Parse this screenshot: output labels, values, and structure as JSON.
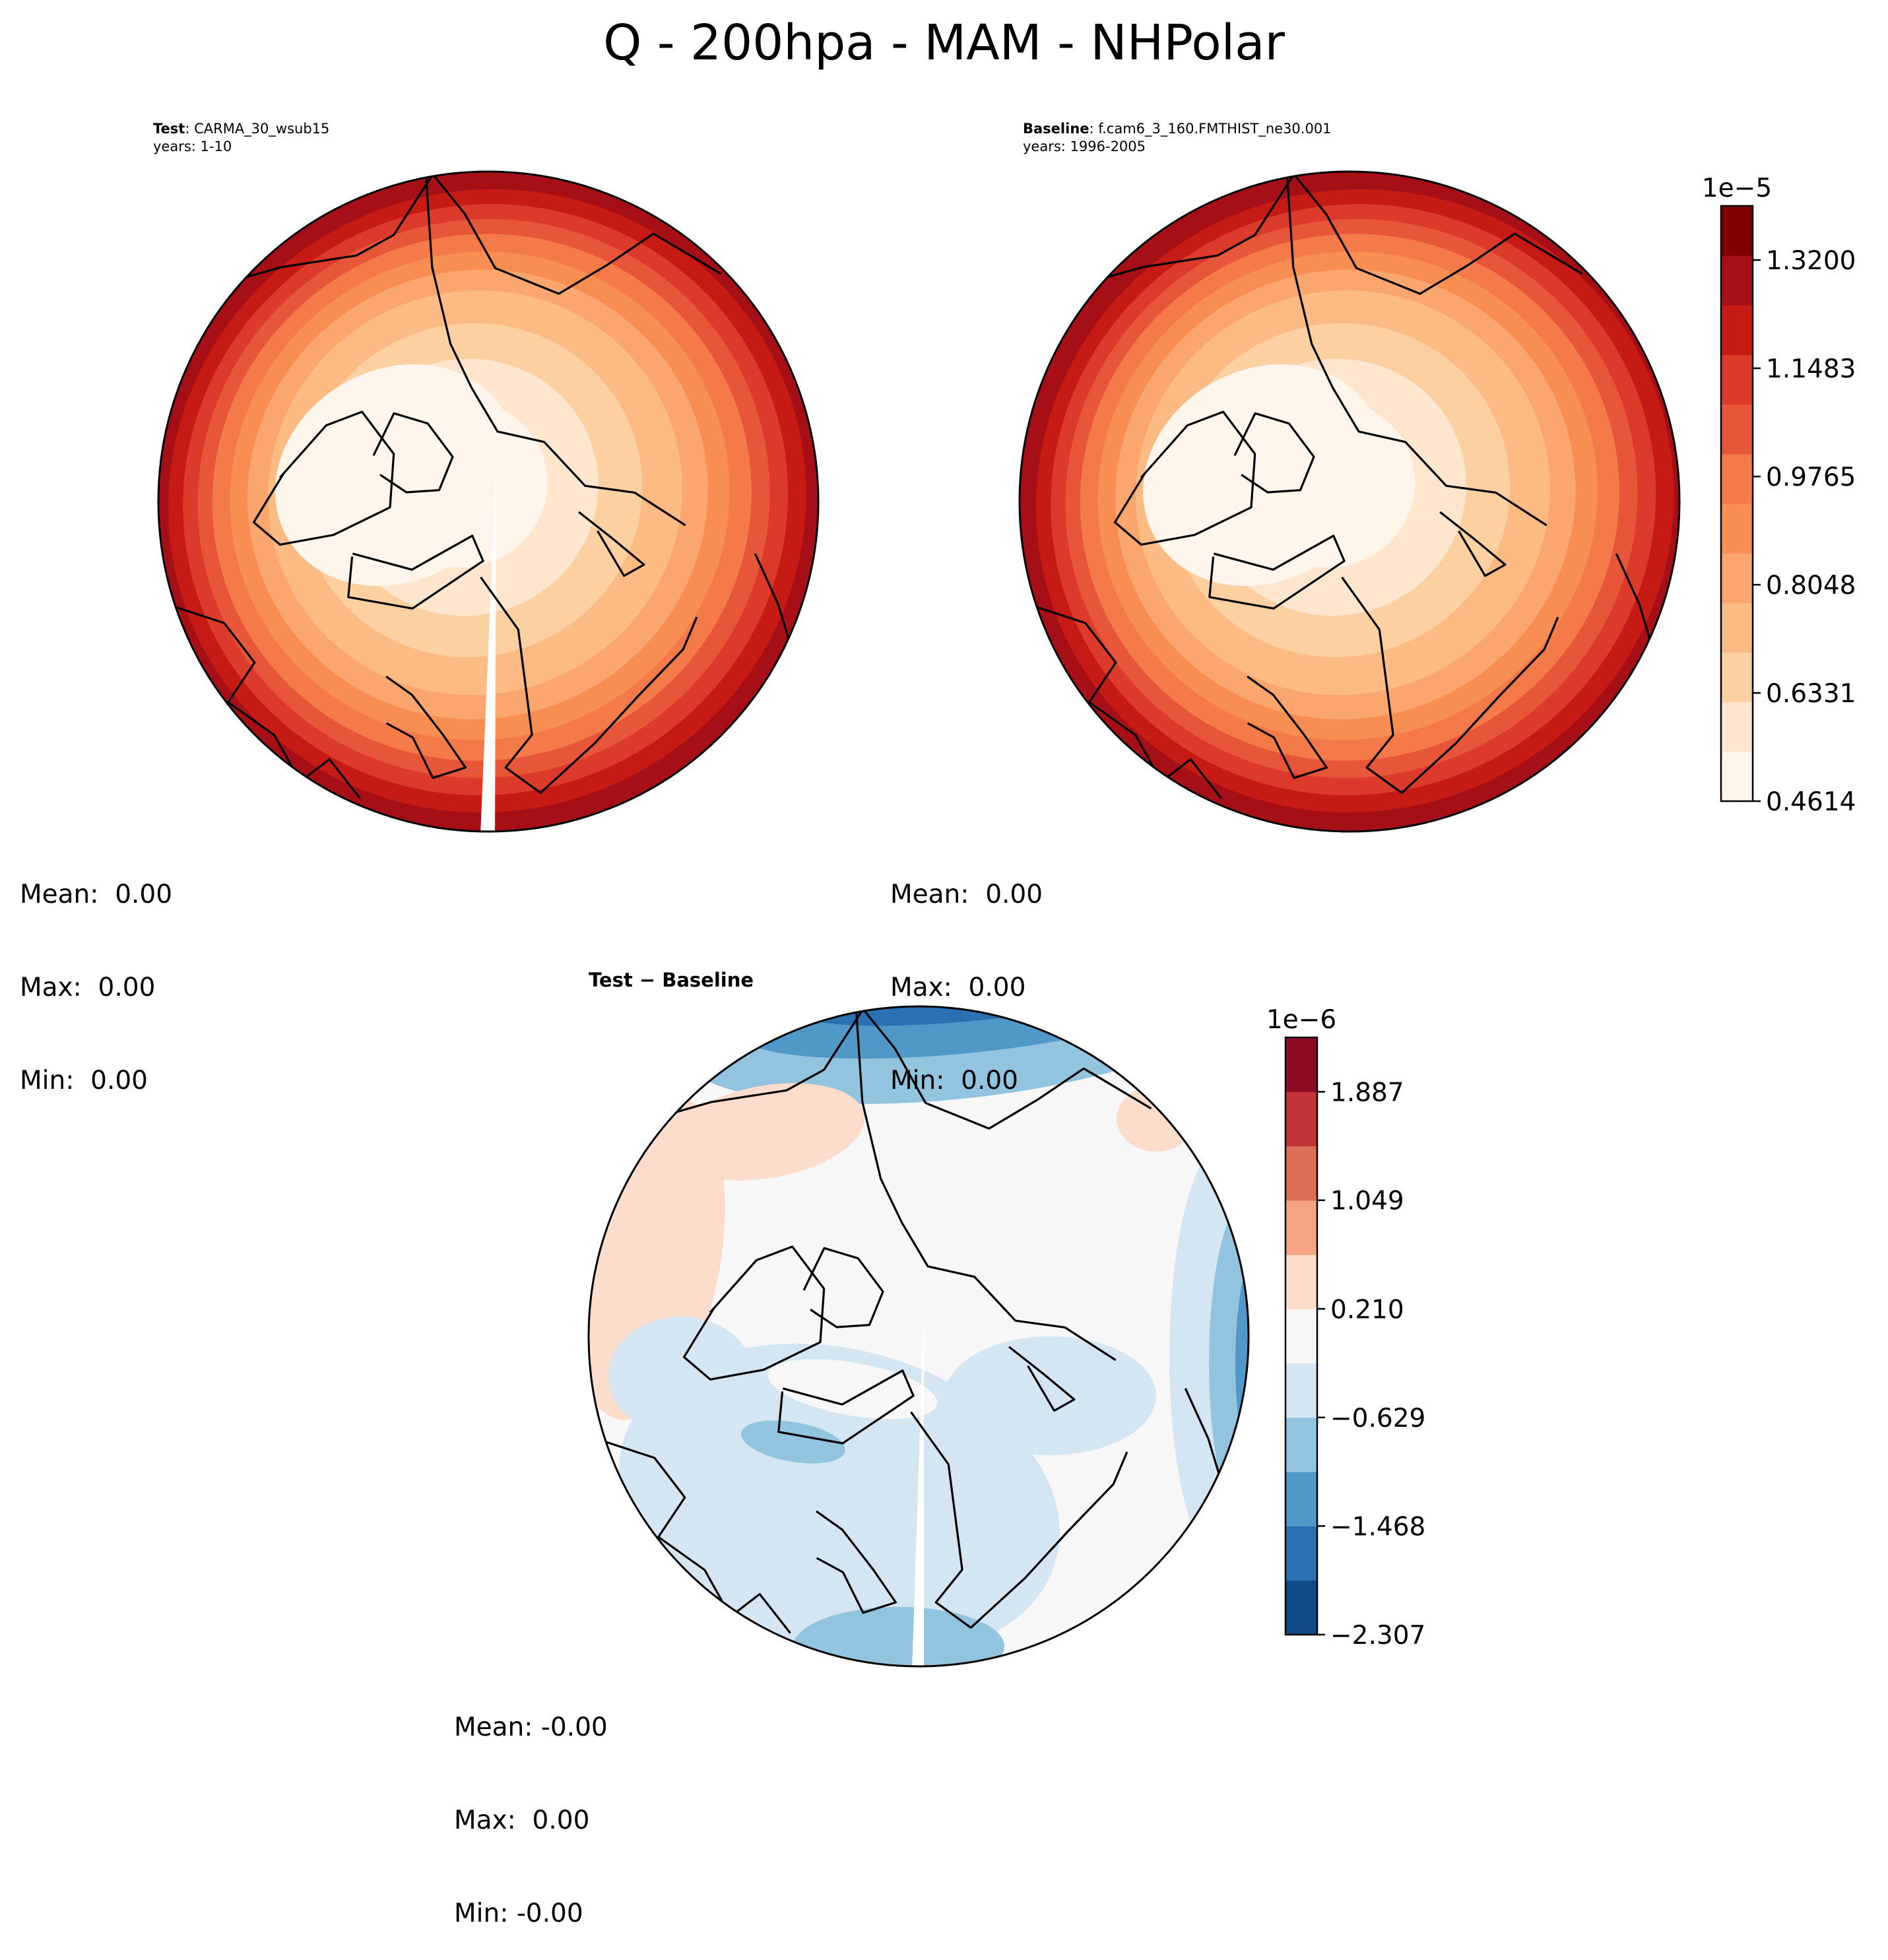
{
  "figure": {
    "title": "Q - 200hpa - MAM - NHPolar"
  },
  "panels": {
    "test": {
      "label_bold": "Test",
      "label_rest": ": CARMA_30_wsub15",
      "years": "years: 1-10",
      "stats": {
        "mean": "Mean:  0.00",
        "max": "Max:  0.00",
        "min": "Min:  0.00"
      }
    },
    "baseline": {
      "label_bold": "Baseline",
      "label_rest": ": f.cam6_3_160.FMTHIST_ne30.001",
      "years": "years: 1996-2005",
      "stats": {
        "mean": "Mean:  0.00",
        "max": "Max:  0.00",
        "min": "Min:  0.00"
      }
    },
    "diff": {
      "label": "Test − Baseline",
      "stats": {
        "mean": "Mean: -0.00",
        "max": "Max:  0.00",
        "min": "Min: -0.00"
      }
    }
  },
  "chart_data": [
    {
      "type": "heatmap",
      "projection": "north-polar-stereographic",
      "panel": "Test",
      "colormap": "OrRd-like",
      "colorbar": {
        "offset": "1e−5",
        "ticks": [
          "1.3200",
          "1.1483",
          "0.9765",
          "0.8048",
          "0.6331",
          "0.4614"
        ],
        "range": [
          0.4614,
          1.4059
        ]
      }
    },
    {
      "type": "heatmap",
      "projection": "north-polar-stereographic",
      "panel": "Baseline",
      "colormap": "OrRd-like",
      "colorbar": {
        "offset": "1e−5",
        "ticks": [
          "1.3200",
          "1.1483",
          "0.9765",
          "0.8048",
          "0.6331",
          "0.4614"
        ],
        "range": [
          0.4614,
          1.4059
        ]
      }
    },
    {
      "type": "heatmap",
      "projection": "north-polar-stereographic",
      "panel": "Test − Baseline",
      "colormap": "RdBu_r",
      "colorbar": {
        "offset": "1e−6",
        "ticks": [
          "1.887",
          "1.049",
          "0.210",
          "−0.629",
          "−1.468",
          "−2.307"
        ],
        "range": [
          -2.307,
          2.307
        ]
      }
    }
  ],
  "colors": {
    "seq": [
      "#fff5eb",
      "#fee6ce",
      "#fdd0a2",
      "#fdbb84",
      "#fca66f",
      "#f98e52",
      "#f47a4a",
      "#e8563a",
      "#dc3b2c",
      "#c51b14",
      "#a50f15",
      "#800000"
    ],
    "div": [
      "#0f4a87",
      "#2a70b2",
      "#4f98c8",
      "#93c4df",
      "#d3e6f1",
      "#f7f7f7",
      "#fcdccb",
      "#f4a483",
      "#dd6f58",
      "#c23437",
      "#8b0b25"
    ]
  }
}
